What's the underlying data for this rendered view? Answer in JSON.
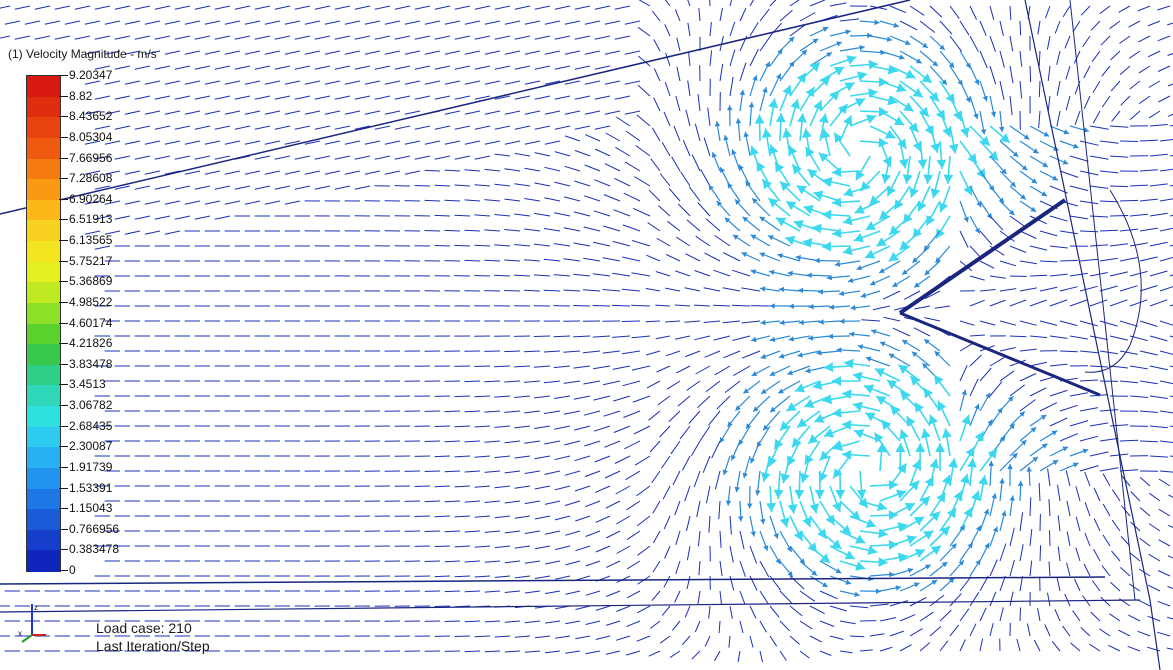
{
  "legend": {
    "title": "(1) Velocity Magnitude - m/s",
    "values": [
      "9.20347",
      "8.82",
      "8.43652",
      "8.05304",
      "7.66956",
      "7.28608",
      "6.90264",
      "6.51913",
      "6.13565",
      "5.75217",
      "5.36869",
      "4.98522",
      "4.60174",
      "4.21826",
      "3.83478",
      "3.4513",
      "3.06782",
      "2.68435",
      "2.30087",
      "1.91739",
      "1.53391",
      "1.15043",
      "0.766956",
      "0.383478",
      "0"
    ],
    "colors": [
      "#d81a10",
      "#e02d10",
      "#e84410",
      "#f05a10",
      "#f57a10",
      "#f99a12",
      "#fbb818",
      "#f8d220",
      "#f3e520",
      "#e5f020",
      "#bfea22",
      "#8edf28",
      "#5ad22e",
      "#38c84a",
      "#2ecf86",
      "#2fd8b8",
      "#2ee0e0",
      "#2ccbef",
      "#27b0f2",
      "#2294ef",
      "#1d78e6",
      "#1a5cd8",
      "#153fca",
      "#1025bc"
    ]
  },
  "info": {
    "load_case": "Load case: 210",
    "iteration": "Last Iteration/Step"
  },
  "colors": {
    "slow_vector": "#1a2fb8",
    "mid_vector": "#2a8ad8",
    "fast_vector": "#3cd8ee",
    "geometry_edge": "#1a2580"
  },
  "icons": [
    "coordinate-triad-icon"
  ]
}
